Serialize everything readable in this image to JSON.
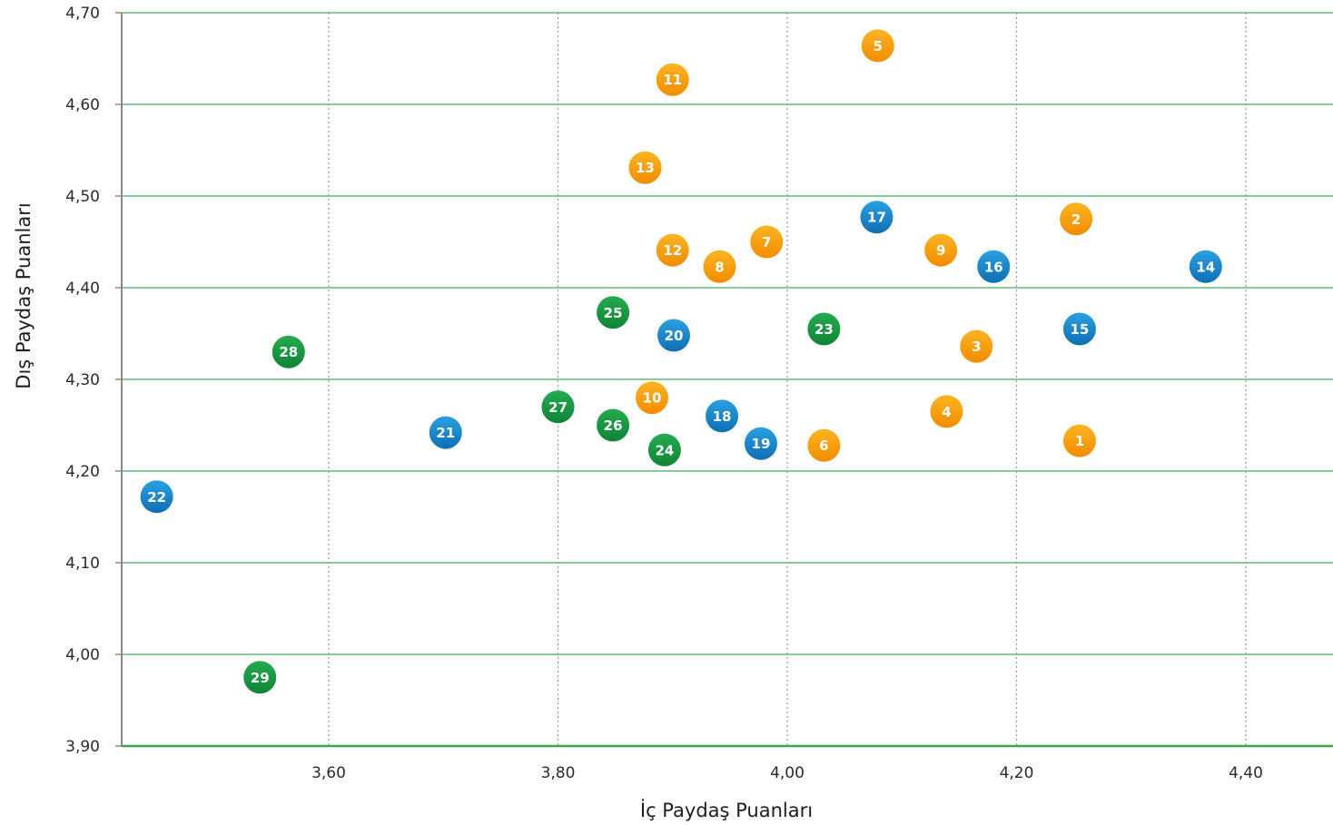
{
  "chart_data": {
    "type": "scatter",
    "xlabel": "İç Paydaş Puanları",
    "ylabel": "Dış Paydaş Puanları",
    "xlim": [
      3.42,
      4.48
    ],
    "ylim": [
      3.9,
      4.7
    ],
    "xticks": [
      3.6,
      3.8,
      4.0,
      4.2,
      4.4
    ],
    "yticks": [
      3.9,
      4.0,
      4.1,
      4.2,
      4.3,
      4.4,
      4.5,
      4.6,
      4.7
    ],
    "x_tick_labels": [
      "3,60",
      "3,80",
      "4,00",
      "4,20",
      "4,40"
    ],
    "y_tick_labels": [
      "3,90",
      "4,00",
      "4,10",
      "4,20",
      "4,30",
      "4,40",
      "4,50",
      "4,60",
      "4,70"
    ],
    "grid": {
      "x": "dotted gray vertical lines",
      "y": "solid green horizontal lines"
    },
    "colors": {
      "orange": "#f59a0c",
      "blue": "#1a86c8",
      "green": "#1a9a43",
      "h_grid": "#3fb15c",
      "v_grid": "#9a9a9a",
      "axis": "#8a8a8a",
      "x_axis": "#3aa655"
    },
    "series": [
      {
        "color": "orange",
        "points": [
          {
            "label": "1",
            "x": 4.255,
            "y": 4.233
          },
          {
            "label": "2",
            "x": 4.252,
            "y": 4.475
          },
          {
            "label": "3",
            "x": 4.165,
            "y": 4.336
          },
          {
            "label": "4",
            "x": 4.139,
            "y": 4.265
          },
          {
            "label": "5",
            "x": 4.079,
            "y": 4.664
          },
          {
            "label": "6",
            "x": 4.032,
            "y": 4.228
          },
          {
            "label": "7",
            "x": 3.982,
            "y": 4.45
          },
          {
            "label": "8",
            "x": 3.941,
            "y": 4.423
          },
          {
            "label": "9",
            "x": 4.134,
            "y": 4.441
          },
          {
            "label": "10",
            "x": 3.882,
            "y": 4.28
          },
          {
            "label": "11",
            "x": 3.9,
            "y": 4.627
          },
          {
            "label": "12",
            "x": 3.9,
            "y": 4.441
          },
          {
            "label": "13",
            "x": 3.876,
            "y": 4.531
          }
        ]
      },
      {
        "color": "blue",
        "points": [
          {
            "label": "14",
            "x": 4.365,
            "y": 4.423
          },
          {
            "label": "15",
            "x": 4.255,
            "y": 4.355
          },
          {
            "label": "16",
            "x": 4.18,
            "y": 4.423
          },
          {
            "label": "17",
            "x": 4.078,
            "y": 4.477
          },
          {
            "label": "18",
            "x": 3.943,
            "y": 4.26
          },
          {
            "label": "19",
            "x": 3.977,
            "y": 4.23
          },
          {
            "label": "20",
            "x": 3.901,
            "y": 4.348
          },
          {
            "label": "21",
            "x": 3.702,
            "y": 4.242
          },
          {
            "label": "22",
            "x": 3.45,
            "y": 4.172
          }
        ]
      },
      {
        "color": "green",
        "points": [
          {
            "label": "23",
            "x": 4.032,
            "y": 4.355
          },
          {
            "label": "24",
            "x": 3.893,
            "y": 4.223
          },
          {
            "label": "25",
            "x": 3.848,
            "y": 4.373
          },
          {
            "label": "26",
            "x": 3.848,
            "y": 4.25
          },
          {
            "label": "27",
            "x": 3.8,
            "y": 4.27
          },
          {
            "label": "28",
            "x": 3.565,
            "y": 4.33
          },
          {
            "label": "29",
            "x": 3.54,
            "y": 3.975
          }
        ]
      }
    ]
  }
}
